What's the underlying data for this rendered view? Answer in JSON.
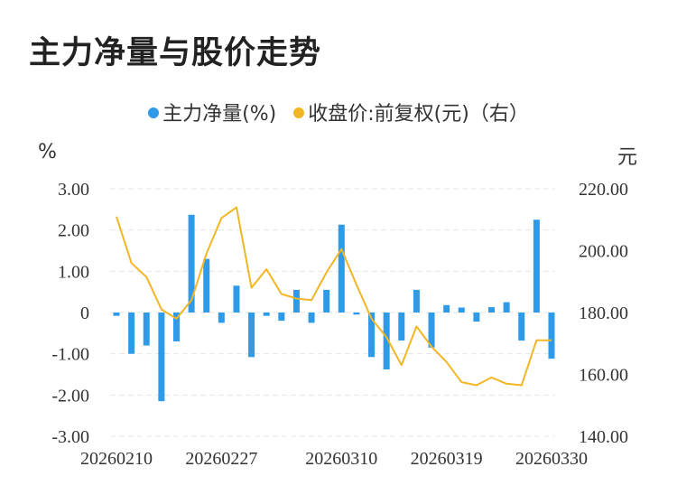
{
  "title": "主力净量与股价走势",
  "legend": {
    "main_flow": "主力净量(%)",
    "close_price": "收盘价:前复权(元)（右）"
  },
  "units": {
    "left": "%",
    "right": "元"
  },
  "colors": {
    "bar": "#2f9ae8",
    "line": "#f2b625",
    "grid": "#e6e6e6"
  },
  "chart_data": {
    "type": "bar",
    "x_tick_labels": [
      "20260210",
      "20260227",
      "20260310",
      "20260319",
      "20260330"
    ],
    "y_left": {
      "ylim": [
        -3,
        3
      ],
      "ticks": [
        "3.00",
        "2.00",
        "1.00",
        "0",
        "-1.00",
        "-2.00",
        "-3.00"
      ]
    },
    "y_right": {
      "ylim": [
        140,
        220
      ],
      "ticks": [
        "220.00",
        "200.00",
        "180.00",
        "160.00",
        "140.00"
      ]
    },
    "series": [
      {
        "name": "主力净量(%)",
        "type": "bar",
        "values": [
          -0.08,
          -1.0,
          -0.8,
          -2.15,
          -0.7,
          2.37,
          1.3,
          -0.25,
          0.65,
          -1.08,
          -0.08,
          -0.2,
          0.55,
          -0.25,
          0.55,
          2.13,
          -0.05,
          -1.08,
          -1.38,
          -0.68,
          0.55,
          -0.85,
          0.18,
          0.12,
          -0.22,
          0.13,
          0.25,
          -0.68,
          2.25,
          -1.12
        ]
      },
      {
        "name": "收盘价:前复权(元)（右）",
        "type": "line",
        "values": [
          211.0,
          196.0,
          191.5,
          181.0,
          178.0,
          184.0,
          199.0,
          210.5,
          214.0,
          188.0,
          194.0,
          186.0,
          184.5,
          184.0,
          193.0,
          200.5,
          189.0,
          178.0,
          172.0,
          163.0,
          175.5,
          169.0,
          164.0,
          157.5,
          156.5,
          159.0,
          157.0,
          156.5,
          171.0,
          171.0
        ]
      }
    ]
  }
}
